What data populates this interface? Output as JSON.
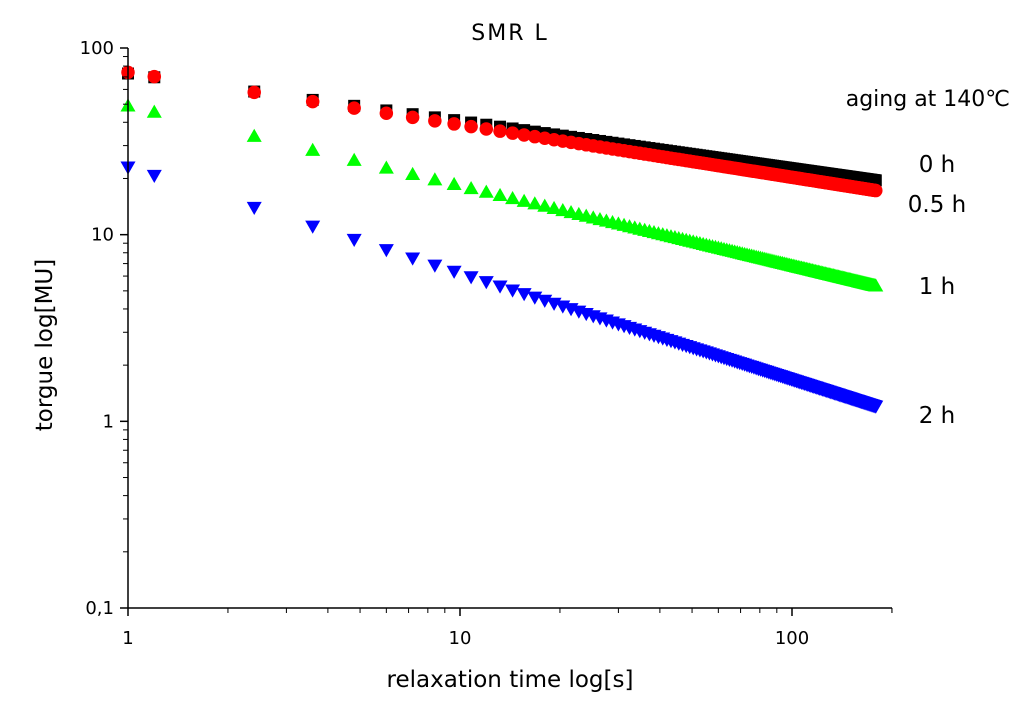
{
  "chart_data": {
    "type": "scatter",
    "title": "SMR L",
    "xlabel": "relaxation time  log[s]",
    "ylabel": "torgue  log[MU]",
    "x_scale": "log",
    "y_scale": "log",
    "xlim": [
      1,
      200
    ],
    "ylim": [
      0.1,
      100
    ],
    "x_ticks": [
      {
        "value": 1,
        "label": "1"
      },
      {
        "value": 10,
        "label": "10"
      },
      {
        "value": 100,
        "label": "100"
      }
    ],
    "y_ticks": [
      {
        "value": 0.1,
        "label": "0,1"
      },
      {
        "value": 1,
        "label": "1"
      },
      {
        "value": 10,
        "label": "10"
      },
      {
        "value": 100,
        "label": "100"
      }
    ],
    "grid": false,
    "annotation": "aging at 140℃",
    "series": [
      {
        "name": "0 h",
        "color": "#000000",
        "marker": "square",
        "x_range": [
          1,
          180
        ],
        "y_start": 73,
        "y_end": 19.5
      },
      {
        "name": "0.5 h",
        "color": "#ff0000",
        "marker": "circle",
        "x_range": [
          1,
          180
        ],
        "y_start": 74,
        "y_end": 17.2
      },
      {
        "name": "1 h",
        "color": "#00ff00",
        "marker": "triangle-up",
        "x_range": [
          1,
          180
        ],
        "y_start": 49,
        "y_end": 5.3
      },
      {
        "name": "2 h",
        "color": "#0000ff",
        "marker": "triangle-down",
        "x_range": [
          1,
          180
        ],
        "y_start": 23,
        "y_end": 1.2
      }
    ]
  }
}
